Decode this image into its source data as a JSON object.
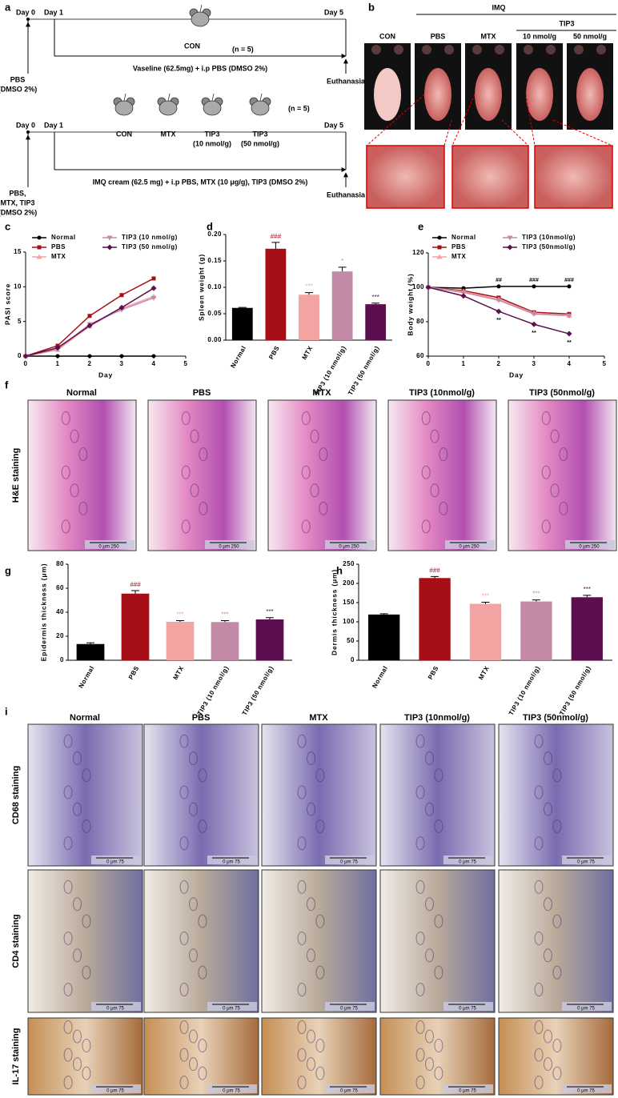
{
  "panel_labels": [
    "a",
    "b",
    "c",
    "d",
    "e",
    "f",
    "g",
    "h",
    "i"
  ],
  "schematic": {
    "control": {
      "day0": "Day 0",
      "day1": "Day 1",
      "day5": "Day 5",
      "group": "CON",
      "n": "(n = 5)",
      "treatment": "Vaseline (62.5mg) + i.p PBS (DMSO 2%)",
      "end": "Euthanasia",
      "start_note": [
        "PBS",
        "(DMSO 2%)"
      ]
    },
    "imq": {
      "day0": "Day 0",
      "day1": "Day 1",
      "day5": "Day 5",
      "groups": [
        [
          "CON"
        ],
        [
          "MTX"
        ],
        [
          "TIP3",
          "(10 nmol/g)"
        ],
        [
          "TIP3",
          "(50 nmol/g)"
        ]
      ],
      "n": "(n = 5)",
      "treatment": "IMQ cream (62.5 mg) + i.p PBS, MTX (10 μg/g), TIP3 (DMSO 2%)",
      "end": "Euthanasia",
      "start_note": [
        "PBS,",
        "MTX, TIP3",
        "(DMSO 2%)"
      ]
    }
  },
  "photos": {
    "imq": "IMQ",
    "tip3": "TIP3",
    "groups": [
      "CON",
      "PBS",
      "MTX",
      "10 nmol/g",
      "50 nmol/g"
    ]
  },
  "chart_data": [
    {
      "type": "line",
      "ylabel": "PASI score",
      "xlabel": "Day",
      "x": [
        0,
        1,
        2,
        3,
        4
      ],
      "xlim": [
        0,
        5
      ],
      "xticks": [
        0,
        1,
        2,
        3,
        4,
        5
      ],
      "ylim": [
        0,
        15
      ],
      "yticks": [
        0,
        5,
        10,
        15
      ],
      "series": [
        {
          "name": "Normal",
          "color": "#000000",
          "marker": "circle",
          "values": [
            0,
            0,
            0,
            0,
            0
          ]
        },
        {
          "name": "PBS",
          "color": "#a50f15",
          "marker": "square",
          "values": [
            0,
            1.5,
            5.8,
            8.8,
            11.2
          ]
        },
        {
          "name": "MTX",
          "color": "#f4a3a3",
          "marker": "triangle",
          "values": [
            0,
            0.9,
            4.3,
            6.9,
            8.6
          ]
        },
        {
          "name": "TIP3 (10 nmol/g)",
          "color": "#c38aa8",
          "marker": "triangle-down",
          "values": [
            0,
            1,
            4.6,
            6.7,
            8.4
          ]
        },
        {
          "name": "TIP3 (50 nmol/g)",
          "color": "#5b0f4f",
          "marker": "diamond",
          "values": [
            0,
            1.2,
            4.4,
            7,
            9.8
          ]
        }
      ]
    },
    {
      "type": "bar",
      "ylabel": "Spleen weight (g)",
      "categories": [
        "Normal",
        "PBS",
        "MTX",
        "TIP3 (10 nmol/g)",
        "TIP3 (50 nmol/g)"
      ],
      "values": [
        0.061,
        0.173,
        0.086,
        0.13,
        0.068
      ],
      "errors": [
        0.001,
        0.012,
        0.004,
        0.008,
        0.002
      ],
      "colors": [
        "#000000",
        "#a50f15",
        "#f4a3a3",
        "#c38aa8",
        "#5b0f4f"
      ],
      "annotations": [
        null,
        "###",
        "***",
        "*",
        "***"
      ],
      "annotation_colors": [
        null,
        "#a50f15",
        "#f4a3a3",
        "#c38aa8",
        "#5b0f4f"
      ],
      "ylim": [
        0,
        0.2
      ],
      "yticks": [
        {
          "value": 0,
          "label": "0.00"
        },
        {
          "value": 0.05,
          "label": "0.05"
        },
        {
          "value": 0.1,
          "label": "0.10"
        },
        {
          "value": 0.15,
          "label": "0.15"
        },
        {
          "value": 0.2,
          "label": "0.20"
        }
      ]
    },
    {
      "type": "line",
      "ylabel": "Body weight (%)",
      "xlabel": "Day",
      "x": [
        0,
        1,
        2,
        3,
        4
      ],
      "xlim": [
        0,
        5
      ],
      "xticks": [
        0,
        1,
        2,
        3,
        4,
        5
      ],
      "ylim": [
        60,
        120
      ],
      "yticks": [
        60,
        80,
        100,
        120
      ],
      "series": [
        {
          "name": "Normal",
          "color": "#000000",
          "marker": "circle",
          "values": [
            100,
            99.5,
            100.5,
            100.5,
            100.5
          ],
          "annotations": [
            null,
            null,
            "##",
            "###",
            "###"
          ],
          "annotation_side": "above"
        },
        {
          "name": "PBS",
          "color": "#a50f15",
          "marker": "square",
          "values": [
            100,
            98,
            94,
            85.5,
            84.5
          ]
        },
        {
          "name": "MTX",
          "color": "#f4a3a3",
          "marker": "triangle",
          "values": [
            100,
            97.5,
            93,
            85,
            83.5
          ]
        },
        {
          "name": "TIP3 (10nmol/g)",
          "color": "#c38aa8",
          "marker": "triangle-down",
          "values": [
            100,
            97,
            92.5,
            84.5,
            83.5
          ]
        },
        {
          "name": "TIP3 (50nmol/g)",
          "color": "#5b0f4f",
          "marker": "diamond",
          "values": [
            100,
            95,
            86,
            78.5,
            73
          ],
          "annotations": [
            null,
            null,
            "**",
            "**",
            "**"
          ],
          "annotation_side": "below"
        }
      ]
    },
    {
      "type": "bar",
      "ylabel": "Epidermis thickness (μm)",
      "categories": [
        "Normal",
        "PBS",
        "MTX",
        "TIP3 (10 nmol/g)",
        "TIP3 (50 nmol/g)"
      ],
      "values": [
        13.5,
        55.5,
        32,
        31.8,
        34
      ],
      "errors": [
        1,
        2.5,
        1,
        1.2,
        1.5
      ],
      "colors": [
        "#000000",
        "#a50f15",
        "#f4a3a3",
        "#c38aa8",
        "#5b0f4f"
      ],
      "annotations": [
        null,
        "###",
        "***",
        "***",
        "***"
      ],
      "annotation_colors": [
        null,
        "#a50f15",
        "#f4a3a3",
        "#c38aa8",
        "#5b0f4f"
      ],
      "ylim": [
        0,
        80
      ],
      "yticks": [
        0,
        20,
        40,
        60,
        80
      ]
    },
    {
      "type": "bar",
      "ylabel": "Dermis thickness (μm)",
      "categories": [
        "Normal",
        "PBS",
        "MTX",
        "TIP3 (10 nmol/g)",
        "TIP3 (50 nmol/g)"
      ],
      "values": [
        119,
        214,
        147,
        153,
        164
      ],
      "errors": [
        2,
        4,
        4,
        4,
        5
      ],
      "colors": [
        "#000000",
        "#a50f15",
        "#f4a3a3",
        "#c38aa8",
        "#5b0f4f"
      ],
      "annotations": [
        null,
        "###",
        "***",
        "***",
        "***"
      ],
      "annotation_colors": [
        null,
        "#a50f15",
        "#f4a3a3",
        "#c38aa8",
        "#5b0f4f"
      ],
      "ylim": [
        0,
        250
      ],
      "yticks": [
        0,
        50,
        100,
        150,
        200,
        250
      ]
    }
  ],
  "he_staining": {
    "row_label": "H&E staining",
    "columns": [
      "Normal",
      "PBS",
      "MTX",
      "TIP3 (10nmol/g)",
      "TIP3 (50nmol/g)"
    ],
    "scale_label": "0    μm    250"
  },
  "ihc_staining": {
    "columns": [
      "Normal",
      "PBS",
      "MTX",
      "TIP3 (10nmol/g)",
      "TIP3 (50nmol/g)"
    ],
    "rows": [
      "CD68 staining",
      "CD4 staining",
      "IL-17 staining"
    ],
    "scale_label": "0   μm   75"
  }
}
